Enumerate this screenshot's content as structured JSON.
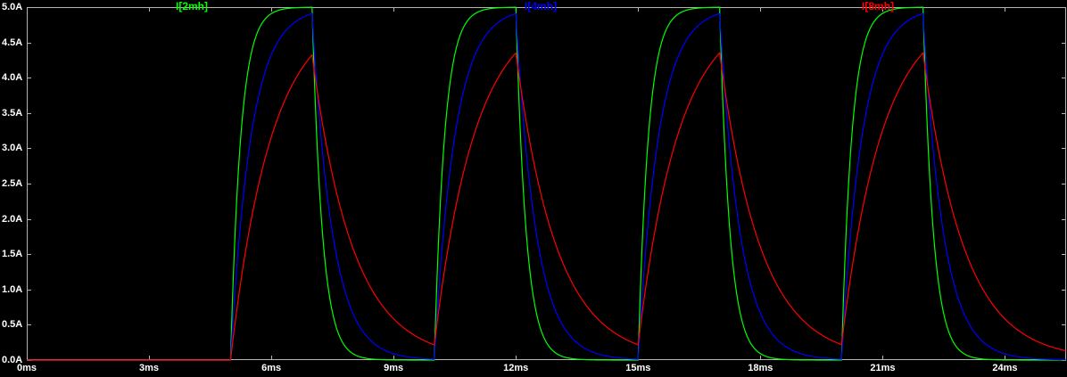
{
  "window": {
    "background": "#000000"
  },
  "chart_data": {
    "type": "line",
    "title": "",
    "x_tick_labels": [
      "0ms",
      "3ms",
      "6ms",
      "9ms",
      "12ms",
      "15ms",
      "18ms",
      "21ms",
      "24ms"
    ],
    "x_tick_values_ms": [
      0,
      3,
      6,
      9,
      12,
      15,
      18,
      21,
      24
    ],
    "y_tick_labels": [
      "5.0A",
      "4.5A",
      "4.0A",
      "3.5A",
      "3.0A",
      "2.5A",
      "2.0A",
      "1.5A",
      "1.0A",
      "0.5A",
      "0.0A"
    ],
    "y_tick_values_A": [
      5.0,
      4.5,
      4.0,
      3.5,
      3.0,
      2.5,
      2.0,
      1.5,
      1.0,
      0.5,
      0.0
    ],
    "xlim_ms": [
      0,
      25.5
    ],
    "ylim_A": [
      0,
      5
    ],
    "grid": false,
    "legend_position": "top",
    "background": "#000000",
    "axis_color": "#b4b4b4",
    "tick_text_color": "#ffffff",
    "series": [
      {
        "name": "I[2mh]",
        "color": "#00ff00",
        "tau_ms": 0.25,
        "peak_A": 5.0
      },
      {
        "name": "I[4mh]",
        "color": "#0000ff",
        "tau_ms": 0.5,
        "peak_A": 4.9
      },
      {
        "name": "I[8mh]",
        "color": "#ff0000",
        "tau_ms": 1.0,
        "peak_A": 4.35
      }
    ],
    "pulse": {
      "description": "RL inductor currents under a repeating voltage pulse: exponential rise toward 5A while the pulse is on, exponential decay toward 0A while off",
      "first_rise_ms": 5,
      "on_time_ms": 2,
      "period_ms": 5,
      "num_cycles": 4,
      "amplitude_A": 5
    }
  }
}
